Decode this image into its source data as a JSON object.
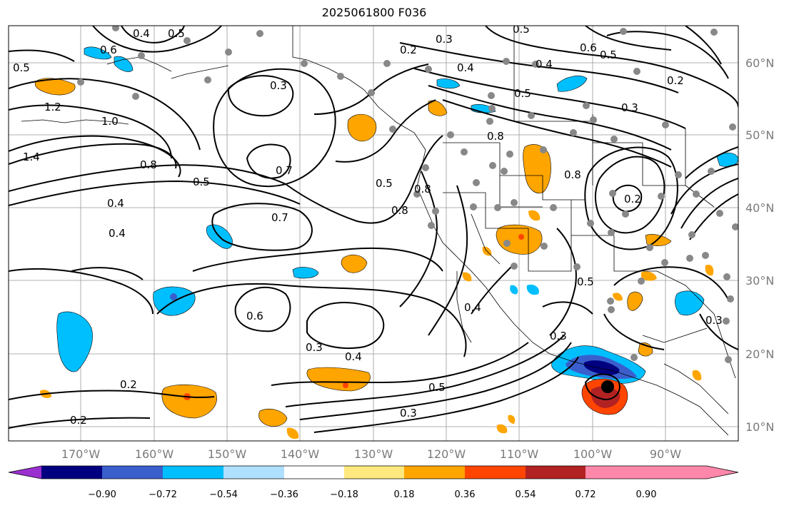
{
  "title": "2025061800 F036",
  "map": {
    "longitude_labels": [
      "170°W",
      "160°W",
      "150°W",
      "140°W",
      "130°W",
      "120°W",
      "110°W",
      "100°W",
      "90°W"
    ],
    "latitude_labels": [
      "60°N",
      "50°N",
      "40°N",
      "30°N",
      "20°N",
      "10°N"
    ],
    "gridlines": true,
    "contour_labels": [
      "0.4",
      "0.5",
      "0.6",
      "0.5",
      "0.2",
      "0.3",
      "0.5",
      "0.6",
      "0.5",
      "0.4",
      "0.4",
      "0.5",
      "0.2",
      "1.2",
      "1.0",
      "1.4",
      "0.8",
      "0.4",
      "0.4",
      "0.5",
      "0.7",
      "0.7",
      "0.5",
      "0.8",
      "0.3",
      "0.6",
      "0.3",
      "0.4",
      "0.5",
      "0.3",
      "0.2",
      "0.2",
      "0.4",
      "0.8",
      "0.8",
      "0.8",
      "0.2",
      "0.3",
      "0.5",
      "0.3",
      "0.3"
    ]
  },
  "colorbar": {
    "ticks": [
      "−0.90",
      "−0.72",
      "−0.54",
      "−0.36",
      "−0.18",
      "0.18",
      "0.36",
      "0.54",
      "0.72",
      "0.90"
    ],
    "colors": [
      "#9b30d0",
      "#000080",
      "#3a5fcd",
      "#00bfff",
      "#b0e0ff",
      "#ffffff",
      "#ffe97f",
      "#ffa500",
      "#ff4500",
      "#b22222",
      "#ff88aa"
    ]
  }
}
